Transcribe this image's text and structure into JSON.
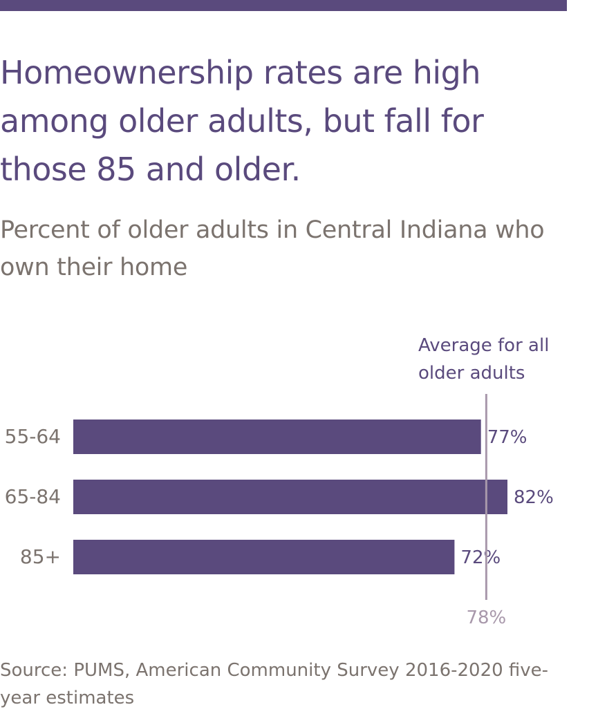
{
  "header": {
    "title": "Homeownership rates are high among older adults, but fall for those 85 and older.",
    "subtitle": "Percent of older adults in Central Indiana who own their home"
  },
  "chart_data": {
    "type": "bar",
    "orientation": "horizontal",
    "categories": [
      "55-64",
      "65-84",
      "85+"
    ],
    "values": [
      77,
      82,
      72
    ],
    "value_labels": [
      "77%",
      "82%",
      "72%"
    ],
    "xlim": [
      0,
      82
    ],
    "grid": false,
    "reference_line": {
      "value": 78,
      "label": "Average for all older adults",
      "value_label": "78%"
    }
  },
  "source": {
    "text": "Source: PUMS, American Community Survey 2016-2020 five-year estimates"
  },
  "colors": {
    "bar": "#5a4a7d",
    "reference_line": "#a898ab",
    "axis_text": "#7b736e",
    "title": "#5a4a7d"
  }
}
